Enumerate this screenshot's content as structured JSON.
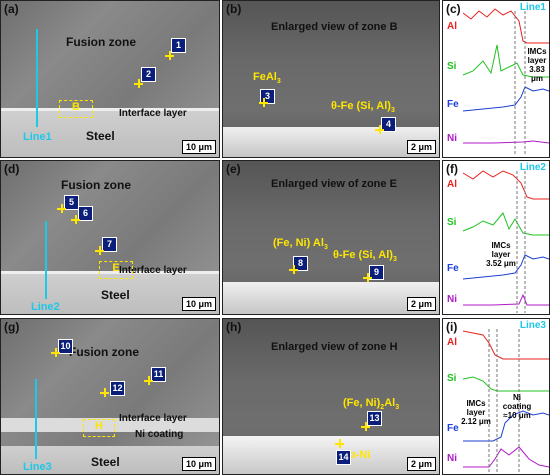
{
  "rows": [
    {
      "left": {
        "label": "(a)",
        "zone_text": "Fusion zone",
        "steel_text": "Steel",
        "interface_text": "Interface layer",
        "box_label": "B",
        "line_label": "Line1",
        "scale": "10 μm",
        "markers": [
          "1",
          "2"
        ]
      },
      "mid": {
        "label": "(b)",
        "title": "Enlarged view of zone B",
        "phase1": "FeAl",
        "phase1_sub": "3",
        "phase2": "θ-Fe (Si, Al)",
        "phase2_sub": "3",
        "markers": [
          "3",
          "4"
        ],
        "scale": "2 μm"
      },
      "right": {
        "label": "(c)",
        "line": "Line1",
        "elements": [
          "Al",
          "Si",
          "Fe",
          "Ni"
        ],
        "note": "IMCs layer 3.83 μm"
      }
    },
    {
      "left": {
        "label": "(d)",
        "zone_text": "Fusion zone",
        "steel_text": "Steel",
        "interface_text": "Interface layer",
        "box_label": "E",
        "line_label": "Line2",
        "scale": "10 μm",
        "markers": [
          "5",
          "6",
          "7"
        ]
      },
      "mid": {
        "label": "(e)",
        "title": "Enlarged view of zone E",
        "phase1": "(Fe, Ni) Al",
        "phase1_sub": "3",
        "phase2": "θ-Fe (Si, Al)",
        "phase2_sub": "3",
        "markers": [
          "8",
          "9"
        ],
        "scale": "2 μm"
      },
      "right": {
        "label": "(f)",
        "line": "Line2",
        "elements": [
          "Al",
          "Si",
          "Fe",
          "Ni"
        ],
        "note": "IMCs layer 3.52 μm"
      }
    },
    {
      "left": {
        "label": "(g)",
        "zone_text": "Fusion zone",
        "steel_text": "Steel",
        "interface_text": "Interface layer",
        "coating_text": "Ni coating",
        "box_label": "H",
        "line_label": "Line3",
        "scale": "10 μm",
        "markers": [
          "10",
          "11",
          "12"
        ]
      },
      "mid": {
        "label": "(h)",
        "title": "Enlarged view of zone H",
        "phase1": "(Fe, Ni)",
        "phase1_sub": "2",
        "phase1_tail": "Al",
        "phase1_tail_sub": "3",
        "phase2": "α-Ni",
        "markers": [
          "13",
          "14"
        ],
        "scale": "2 μm"
      },
      "right": {
        "label": "(i)",
        "line": "Line3",
        "elements": [
          "Al",
          "Si",
          "Fe",
          "Ni"
        ],
        "note1": "IMCs layer 2.12 μm",
        "note2": "Ni coating ≈10 μm"
      }
    }
  ],
  "colors": {
    "Al": "#e8231f",
    "Si": "#21c321",
    "Fe": "#1c3fd6",
    "Ni": "#b019c9",
    "line": "#1ec8e8",
    "marker": "#0b1f7a"
  }
}
